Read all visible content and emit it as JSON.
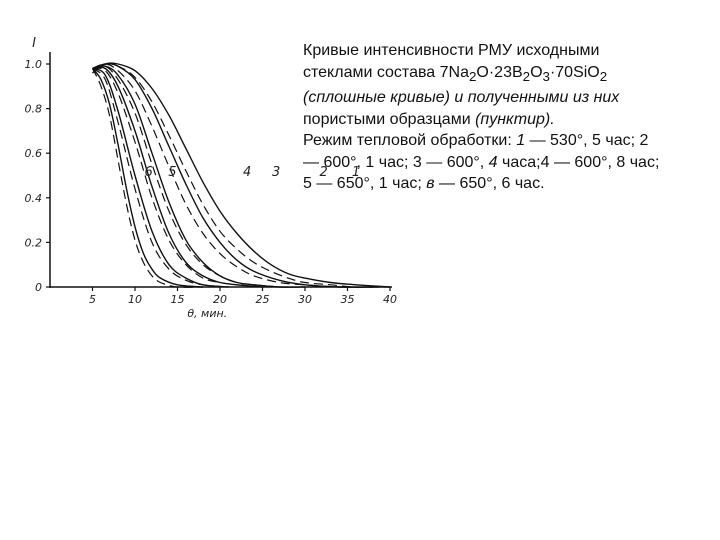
{
  "chart_data": {
    "type": "line",
    "ylabel": "I",
    "xlabel": "θ, мин.",
    "xlim": [
      0,
      40
    ],
    "ylim": [
      0,
      1.0
    ],
    "x_ticks": [
      5,
      10,
      15,
      20,
      25,
      30,
      35,
      40
    ],
    "y_ticks": [
      0,
      0.2,
      0.4,
      0.6,
      0.8,
      1.0
    ],
    "y_tick_labels": [
      "0",
      "0.2",
      "0.4",
      "0.6",
      "0.8",
      "1.0"
    ],
    "series": [
      {
        "name": "1",
        "style": "solid",
        "x": [
          5,
          6.5,
          8,
          10,
          12,
          14,
          16,
          18,
          20,
          22,
          24,
          26,
          28,
          30,
          33,
          36,
          40
        ],
        "y": [
          0.96,
          1.0,
          1.0,
          0.97,
          0.89,
          0.77,
          0.62,
          0.47,
          0.34,
          0.24,
          0.16,
          0.1,
          0.06,
          0.04,
          0.02,
          0.01,
          0.0
        ]
      },
      {
        "name": "1",
        "style": "dashed",
        "x": [
          5,
          6.5,
          8,
          10,
          12,
          14,
          16,
          18,
          20,
          22,
          24,
          26,
          28,
          30,
          33,
          36,
          40
        ],
        "y": [
          0.96,
          1.0,
          0.99,
          0.94,
          0.83,
          0.68,
          0.52,
          0.37,
          0.25,
          0.17,
          0.11,
          0.07,
          0.04,
          0.02,
          0.01,
          0.0,
          0.0
        ]
      },
      {
        "name": "2",
        "style": "solid",
        "x": [
          5,
          6.5,
          8,
          10,
          12,
          14,
          16,
          18,
          20,
          22,
          24,
          27,
          30,
          34,
          38
        ],
        "y": [
          0.98,
          1.0,
          0.99,
          0.93,
          0.8,
          0.63,
          0.46,
          0.31,
          0.2,
          0.12,
          0.07,
          0.03,
          0.01,
          0.0,
          0.0
        ]
      },
      {
        "name": "2",
        "style": "dashed",
        "x": [
          5,
          6.5,
          8,
          10,
          12,
          14,
          16,
          18,
          20,
          22,
          24,
          27,
          30,
          34,
          38
        ],
        "y": [
          0.98,
          1.0,
          0.97,
          0.88,
          0.72,
          0.54,
          0.37,
          0.24,
          0.15,
          0.09,
          0.05,
          0.02,
          0.01,
          0.0,
          0.0
        ]
      },
      {
        "name": "3",
        "style": "solid",
        "x": [
          5,
          6.5,
          8,
          10,
          12,
          14,
          16,
          18,
          20,
          22,
          24,
          27,
          30
        ],
        "y": [
          0.98,
          0.99,
          0.95,
          0.82,
          0.6,
          0.38,
          0.21,
          0.11,
          0.05,
          0.02,
          0.01,
          0.0,
          0.0
        ]
      },
      {
        "name": "3",
        "style": "dashed",
        "x": [
          5,
          6.5,
          8,
          10,
          12,
          14,
          16,
          18,
          20,
          22,
          24,
          27
        ],
        "y": [
          0.98,
          0.99,
          0.93,
          0.78,
          0.55,
          0.34,
          0.19,
          0.1,
          0.05,
          0.02,
          0.01,
          0.0
        ]
      },
      {
        "name": "4",
        "style": "solid",
        "x": [
          5,
          6.5,
          8,
          10,
          12,
          14,
          16,
          18,
          20,
          22,
          25
        ],
        "y": [
          0.98,
          0.98,
          0.9,
          0.7,
          0.45,
          0.24,
          0.11,
          0.05,
          0.02,
          0.01,
          0.0
        ]
      },
      {
        "name": "4",
        "style": "dashed",
        "x": [
          5,
          6.5,
          8,
          10,
          12,
          14,
          16,
          18,
          20,
          22,
          25
        ],
        "y": [
          0.98,
          0.97,
          0.87,
          0.65,
          0.4,
          0.21,
          0.1,
          0.04,
          0.02,
          0.01,
          0.0
        ]
      },
      {
        "name": "5",
        "style": "solid",
        "x": [
          5,
          6.5,
          8,
          10,
          12,
          14,
          16,
          18,
          21
        ],
        "y": [
          0.98,
          0.95,
          0.79,
          0.5,
          0.25,
          0.1,
          0.04,
          0.01,
          0.0
        ]
      },
      {
        "name": "5",
        "style": "dashed",
        "x": [
          5,
          6.5,
          8,
          10,
          12,
          14,
          16,
          18,
          21
        ],
        "y": [
          0.98,
          0.93,
          0.74,
          0.44,
          0.2,
          0.08,
          0.03,
          0.01,
          0.0
        ]
      },
      {
        "name": "6",
        "style": "solid",
        "x": [
          5,
          6,
          7,
          8,
          9,
          10,
          11,
          12,
          13,
          15,
          18
        ],
        "y": [
          0.98,
          0.93,
          0.82,
          0.64,
          0.44,
          0.27,
          0.15,
          0.08,
          0.04,
          0.01,
          0.0
        ]
      },
      {
        "name": "6",
        "style": "dashed",
        "x": [
          5,
          6,
          7,
          8,
          9,
          10,
          11,
          12,
          13,
          15,
          18
        ],
        "y": [
          0.98,
          0.9,
          0.77,
          0.57,
          0.37,
          0.21,
          0.11,
          0.05,
          0.02,
          0.0,
          0.0
        ]
      }
    ],
    "curve_labels": [
      {
        "text": "1",
        "x": 36.0,
        "y": 0.52
      },
      {
        "text": "2",
        "x": 32.2,
        "y": 0.52
      },
      {
        "text": "3",
        "x": 26.6,
        "y": 0.52
      },
      {
        "text": "4",
        "x": 23.2,
        "y": 0.52
      },
      {
        "text": "5",
        "x": 14.4,
        "y": 0.52
      },
      {
        "text": "6",
        "x": 11.6,
        "y": 0.52
      }
    ]
  },
  "caption": {
    "line1": "Кривые интенсивности РМУ исходными",
    "line2_a": "стеклами состава 7Na",
    "line2_sub1": "2",
    "line2_b": "O·23B",
    "line2_sub2": "2",
    "line2_c": "O",
    "line2_sub3": "3",
    "line2_d": "·70SiO",
    "line2_sub4": "2",
    "line3": "(сплошные кривые) и полученными из них",
    "line4_a": "пористыми образцами ",
    "line4_b": "(пунктир).",
    "line5_a": "Режим тепловой обработки: ",
    "line5_b": "1",
    "line5_c": " — 530°, 5 час; 2",
    "line6_a": "— 600°, 1 час; 3 — 600°, ",
    "line6_b": "4",
    "line6_c": " часа;4 — 600°, 8 час;",
    "line7_a": "5 — 650°, 1 час; ",
    "line7_b": "в",
    "line7_c": " — 650°, 6 час."
  }
}
